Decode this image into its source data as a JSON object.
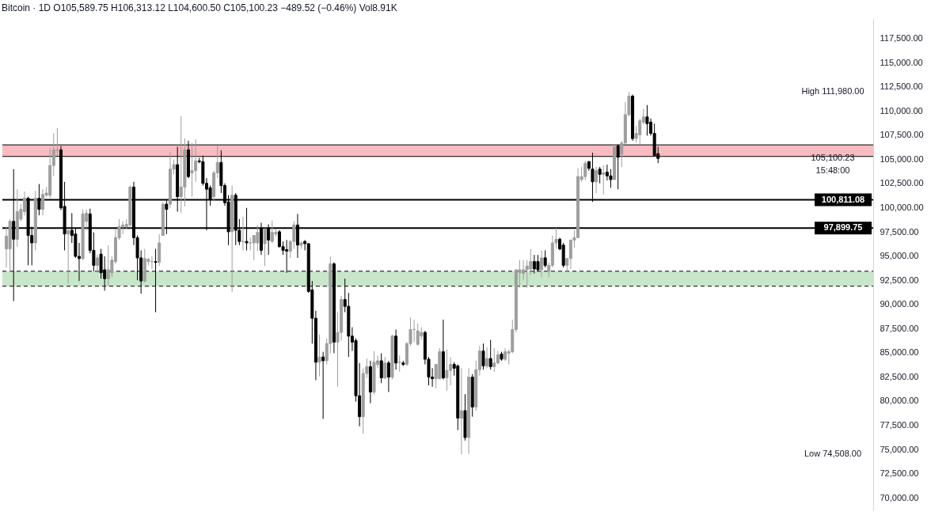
{
  "chart_data": {
    "type": "candlestick",
    "title": "Bitcoin · 1D   O105,589.75 H106,313.12 L104,600.50 C105,100.23 −489.52 (−0.46%) Vol8.91K",
    "categories": [
      null,
      null,
      null,
      null,
      null,
      null,
      null,
      null,
      null,
      null,
      null,
      null,
      null,
      null,
      null,
      null,
      null,
      null,
      null,
      null,
      null,
      null,
      null,
      null,
      null,
      null,
      null,
      null,
      null,
      null,
      null,
      null,
      null,
      null,
      null,
      null,
      null,
      null,
      null,
      null,
      null,
      null,
      null,
      null,
      null,
      null,
      null,
      null,
      null,
      null,
      null,
      null,
      null,
      null,
      null,
      null,
      null,
      null,
      null,
      null,
      null,
      null,
      null,
      null,
      null,
      null,
      null,
      null,
      null,
      null,
      null,
      null,
      null,
      null,
      null,
      null,
      null,
      null,
      null,
      null,
      null,
      null,
      null,
      null,
      null,
      null,
      null,
      null,
      null,
      null,
      null,
      null,
      null,
      null,
      null,
      null,
      null,
      null,
      null,
      null,
      null,
      null,
      null,
      null,
      null,
      null,
      null,
      null,
      null,
      null,
      null,
      null,
      null,
      null,
      null,
      null,
      null,
      null,
      null,
      null,
      null,
      null,
      null,
      null,
      null,
      null,
      null,
      null,
      null,
      null,
      null,
      null,
      null,
      null,
      null,
      null,
      null,
      null,
      null,
      null,
      null,
      null,
      null,
      null,
      null,
      null,
      null,
      null,
      null,
      null,
      null,
      null,
      null,
      null,
      null,
      null,
      null,
      null,
      null,
      null,
      null,
      null,
      null,
      null,
      null,
      null,
      null,
      null,
      null,
      null,
      null,
      null,
      null,
      null,
      null,
      null,
      null,
      null,
      null,
      null,
      null,
      null,
      null,
      null,
      null,
      null,
      null,
      null,
      null,
      null,
      null,
      null,
      null,
      null,
      null,
      null,
      null,
      null,
      null,
      null,
      null,
      null,
      null,
      null,
      null,
      null,
      null,
      null,
      null,
      null,
      null,
      null,
      null,
      null,
      null,
      null,
      null,
      null,
      null,
      null,
      null,
      null,
      null,
      null,
      null,
      null,
      null,
      null,
      null,
      null,
      null,
      null,
      null,
      null,
      null,
      null,
      null,
      null
    ],
    "ohlc": [
      [
        95740,
        98050,
        93810,
        97050
      ],
      [
        95740,
        98820,
        93430,
        98590
      ],
      [
        98590,
        103990,
        90340,
        96740
      ],
      [
        96740,
        101910,
        95970,
        99590
      ],
      [
        98820,
        100370,
        98590,
        99830
      ],
      [
        99590,
        101680,
        99210,
        100980
      ],
      [
        100980,
        101140,
        94040,
        97130
      ],
      [
        97130,
        98050,
        94040,
        96360
      ],
      [
        96360,
        101750,
        95590,
        100980
      ],
      [
        100980,
        102450,
        99210,
        99830
      ],
      [
        99830,
        101910,
        99210,
        101370
      ],
      [
        101290,
        102140,
        101140,
        101520
      ],
      [
        101290,
        106150,
        100980,
        104370
      ],
      [
        104370,
        107690,
        103290,
        105990
      ],
      [
        105920,
        108230,
        105380,
        105990
      ],
      [
        105990,
        106380,
        99750,
        99980
      ],
      [
        100140,
        102680,
        95590,
        97280
      ],
      [
        97280,
        97670,
        92120,
        97670
      ],
      [
        97670,
        99440,
        96360,
        97130
      ],
      [
        97280,
        97900,
        94810,
        94970
      ],
      [
        94970,
        96360,
        92420,
        94740
      ],
      [
        94740,
        99830,
        94580,
        99360
      ],
      [
        98590,
        99830,
        97670,
        99440
      ],
      [
        99360,
        99900,
        95280,
        95590
      ],
      [
        95590,
        97440,
        93430,
        94040
      ],
      [
        94040,
        95120,
        93270,
        94810
      ],
      [
        95200,
        95740,
        92660,
        93270
      ],
      [
        93580,
        94970,
        91420,
        92660
      ],
      [
        92660,
        96130,
        91880,
        93580
      ],
      [
        93270,
        94970,
        92810,
        94580
      ],
      [
        94430,
        97820,
        94200,
        96900
      ],
      [
        96900,
        98820,
        96660,
        98050
      ],
      [
        98050,
        98590,
        97280,
        98210
      ],
      [
        98050,
        98820,
        97820,
        98280
      ],
      [
        98210,
        102290,
        97900,
        102140
      ],
      [
        102140,
        102680,
        96130,
        96900
      ],
      [
        96900,
        97130,
        92500,
        94810
      ],
      [
        94810,
        95590,
        91110,
        92420
      ],
      [
        92420,
        95740,
        92270,
        94740
      ],
      [
        94430,
        94810,
        94040,
        94660
      ],
      [
        94430,
        94970,
        93660,
        94430
      ],
      [
        94430,
        95740,
        89190,
        94350
      ],
      [
        94350,
        97280,
        93970,
        96360
      ],
      [
        97130,
        100600,
        97130,
        100370
      ],
      [
        100370,
        100750,
        97280,
        99830
      ],
      [
        100370,
        105760,
        99980,
        103990
      ],
      [
        103990,
        104990,
        103450,
        104450
      ],
      [
        104450,
        106300,
        99590,
        101140
      ],
      [
        101140,
        109460,
        99440,
        102140
      ],
      [
        102140,
        107150,
        100140,
        105990
      ],
      [
        105990,
        106920,
        103060,
        103220
      ],
      [
        103600,
        106690,
        101140,
        103830
      ],
      [
        103830,
        107070,
        102680,
        104840
      ],
      [
        104840,
        105150,
        104600,
        104760
      ],
      [
        104760,
        105380,
        102290,
        102520
      ],
      [
        102520,
        103060,
        97670,
        101910
      ],
      [
        102060,
        102290,
        100210,
        100910
      ],
      [
        101140,
        103830,
        100750,
        103600
      ],
      [
        103600,
        106380,
        103060,
        104680
      ],
      [
        104680,
        105920,
        101520,
        102290
      ],
      [
        102290,
        102520,
        100210,
        100520
      ],
      [
        100600,
        101290,
        96130,
        97510
      ],
      [
        97510,
        102290,
        91270,
        101290
      ],
      [
        101290,
        101520,
        96130,
        97670
      ],
      [
        97670,
        98820,
        96130,
        96510
      ],
      [
        96510,
        99050,
        95590,
        96510
      ],
      [
        96510,
        99980,
        95590,
        96360
      ],
      [
        96360,
        96900,
        95590,
        96360
      ],
      [
        96360,
        97130,
        94580,
        97130
      ],
      [
        96360,
        98210,
        95510,
        97440
      ],
      [
        97820,
        98440,
        95120,
        95590
      ],
      [
        96280,
        97820,
        93970,
        97820
      ],
      [
        97820,
        98280,
        95120,
        96660
      ],
      [
        96510,
        98670,
        96360,
        97440
      ],
      [
        97280,
        97820,
        97050,
        97440
      ],
      [
        97510,
        97670,
        95890,
        95970
      ],
      [
        95970,
        96510,
        95120,
        95590
      ],
      [
        95660,
        96660,
        93270,
        95510
      ],
      [
        95510,
        96660,
        94810,
        96510
      ],
      [
        96510,
        98590,
        95740,
        98210
      ],
      [
        98210,
        99360,
        94810,
        96130
      ],
      [
        96130,
        96510,
        95740,
        96360
      ],
      [
        96510,
        96660,
        95590,
        96280
      ],
      [
        96280,
        96360,
        91200,
        91340
      ],
      [
        91500,
        92420,
        85950,
        88570
      ],
      [
        88570,
        89340,
        82170,
        84020
      ],
      [
        84020,
        86870,
        82550,
        84560
      ],
      [
        84560,
        85100,
        78160,
        84170
      ],
      [
        84170,
        86490,
        83790,
        85950
      ],
      [
        85950,
        94970,
        84950,
        94200
      ],
      [
        94200,
        94350,
        84950,
        86100
      ],
      [
        86100,
        89190,
        81480,
        87100
      ],
      [
        87100,
        90880,
        86260,
        90500
      ],
      [
        90500,
        92660,
        89190,
        89800
      ],
      [
        89800,
        91190,
        84560,
        86720
      ],
      [
        86720,
        87640,
        85180,
        86100
      ],
      [
        86260,
        86490,
        79940,
        80550
      ],
      [
        80550,
        83940,
        77390,
        78390
      ],
      [
        78390,
        83400,
        76620,
        82860
      ],
      [
        82860,
        84400,
        82400,
        83560
      ],
      [
        83560,
        84170,
        79780,
        80940
      ],
      [
        80940,
        85180,
        80710,
        84020
      ],
      [
        83790,
        84710,
        83400,
        84170
      ],
      [
        84170,
        84950,
        81860,
        82400
      ],
      [
        82400,
        84560,
        82250,
        83940
      ],
      [
        83940,
        84170,
        80940,
        82480
      ],
      [
        82480,
        86870,
        82250,
        86720
      ],
      [
        86720,
        87410,
        83250,
        83940
      ],
      [
        84020,
        84710,
        83020,
        84020
      ],
      [
        83940,
        84170,
        83630,
        83790
      ],
      [
        83790,
        86100,
        83630,
        85950
      ],
      [
        85950,
        88650,
        85720,
        87410
      ],
      [
        87410,
        88420,
        86100,
        87410
      ],
      [
        85870,
        88030,
        85720,
        87260
      ],
      [
        86720,
        87640,
        86330,
        87100
      ],
      [
        87100,
        87260,
        83790,
        84330
      ],
      [
        84330,
        84560,
        81630,
        82480
      ],
      [
        82480,
        83400,
        81480,
        82320
      ],
      [
        82320,
        83790,
        81320,
        83790
      ],
      [
        82320,
        85480,
        82250,
        85100
      ],
      [
        85100,
        88420,
        82250,
        82400
      ],
      [
        82400,
        85330,
        81090,
        83170
      ],
      [
        83170,
        84560,
        81630,
        83790
      ],
      [
        83790,
        84020,
        82630,
        83400
      ],
      [
        83630,
        83790,
        77000,
        78240
      ],
      [
        78240,
        83400,
        74508,
        79010
      ],
      [
        79010,
        80710,
        75920,
        76230
      ],
      [
        76230,
        83400,
        74540,
        82480
      ],
      [
        82480,
        82790,
        78390,
        79390
      ],
      [
        79390,
        84170,
        79010,
        83250
      ],
      [
        83250,
        85720,
        82630,
        85180
      ],
      [
        85180,
        85950,
        83250,
        83630
      ],
      [
        83630,
        85560,
        83400,
        84400
      ],
      [
        84400,
        86330,
        83250,
        83560
      ],
      [
        83560,
        85480,
        83020,
        83940
      ],
      [
        83940,
        85180,
        83790,
        84790
      ],
      [
        84870,
        85100,
        84170,
        84330
      ],
      [
        84330,
        85480,
        84170,
        85100
      ],
      [
        84950,
        85330,
        83790,
        85100
      ],
      [
        85100,
        88420,
        84950,
        87410
      ],
      [
        87410,
        93580,
        87100,
        93580
      ],
      [
        93270,
        94580,
        91730,
        93580
      ],
      [
        93200,
        94580,
        92500,
        93580
      ],
      [
        93580,
        94580,
        91730,
        93970
      ],
      [
        93660,
        95740,
        93040,
        94430
      ],
      [
        94430,
        95120,
        93200,
        93660
      ],
      [
        94430,
        95120,
        93430,
        93580
      ],
      [
        93580,
        95590,
        92810,
        94810
      ],
      [
        94810,
        95590,
        93810,
        94040
      ],
      [
        93430,
        94350,
        92810,
        94040
      ],
      [
        94040,
        97130,
        93810,
        96360
      ],
      [
        96360,
        97900,
        95740,
        96740
      ],
      [
        96740,
        96900,
        95590,
        95740
      ],
      [
        96130,
        96360,
        93810,
        94040
      ],
      [
        94040,
        94810,
        93430,
        94740
      ],
      [
        94740,
        96660,
        93660,
        96660
      ],
      [
        96660,
        97670,
        95890,
        96900
      ],
      [
        96900,
        104070,
        96900,
        103220
      ],
      [
        102910,
        104220,
        102680,
        103220
      ],
      [
        103220,
        104840,
        102830,
        104600
      ],
      [
        104760,
        104840,
        103830,
        104070
      ],
      [
        103990,
        105690,
        100600,
        102680
      ],
      [
        102680,
        104220,
        101520,
        103830
      ],
      [
        103990,
        104220,
        102520,
        103450
      ],
      [
        103450,
        104370,
        101370,
        103600
      ],
      [
        103680,
        104450,
        102830,
        103290
      ],
      [
        103290,
        103990,
        102060,
        102910
      ],
      [
        102910,
        106530,
        102910,
        106300
      ],
      [
        106380,
        106530,
        101910,
        105220
      ],
      [
        105530,
        106920,
        104220,
        106690
      ],
      [
        106690,
        110930,
        106530,
        109620
      ],
      [
        109620,
        111980,
        109460,
        111540
      ],
      [
        111540,
        111700,
        106920,
        107150
      ],
      [
        107150,
        108460,
        106760,
        107690
      ],
      [
        107540,
        109230,
        106530,
        109000
      ],
      [
        108850,
        110230,
        108610,
        109390
      ],
      [
        109390,
        110620,
        107460,
        108690
      ],
      [
        108850,
        109230,
        107460,
        107690
      ],
      [
        107690,
        108690,
        105380,
        105380
      ],
      [
        105589.75,
        106313.12,
        104600.5,
        105100.23
      ],
      null,
      null,
      null,
      null,
      null,
      null,
      null,
      null,
      null,
      null,
      null,
      null,
      null,
      null,
      null,
      null,
      null,
      null,
      null,
      null,
      null,
      null,
      null,
      null,
      null,
      null,
      null,
      null,
      null,
      null,
      null,
      null,
      null,
      null,
      null,
      null,
      null,
      null,
      null,
      null,
      null,
      null,
      null,
      null,
      null,
      null,
      null,
      null,
      null,
      null,
      null,
      null,
      null,
      null,
      null,
      null,
      null,
      null
    ],
    "colors": [
      "#9e9e9e",
      "#9e9e9e",
      "#000000",
      "#9e9e9e",
      "#9e9e9e",
      "#9e9e9e",
      "#000000",
      "#000000",
      "#9e9e9e",
      "#000000",
      "#9e9e9e",
      "#9e9e9e",
      "#9e9e9e",
      "#9e9e9e",
      "#9e9e9e",
      "#000000",
      "#000000",
      "#9e9e9e",
      "#000000",
      "#000000",
      "#000000",
      "#9e9e9e",
      "#9e9e9e",
      "#000000",
      "#000000",
      "#9e9e9e",
      "#000000",
      "#000000",
      "#9e9e9e",
      "#9e9e9e",
      "#9e9e9e",
      "#9e9e9e",
      "#9e9e9e",
      "#9e9e9e",
      "#9e9e9e",
      "#000000",
      "#000000",
      "#000000",
      "#9e9e9e",
      "#9e9e9e",
      "#9e9e9e",
      "#000000",
      "#9e9e9e",
      "#9e9e9e",
      "#000000",
      "#9e9e9e",
      "#9e9e9e",
      "#000000",
      "#9e9e9e",
      "#9e9e9e",
      "#000000",
      "#9e9e9e",
      "#9e9e9e",
      "#000000",
      "#000000",
      "#000000",
      "#000000",
      "#9e9e9e",
      "#9e9e9e",
      "#000000",
      "#000000",
      "#000000",
      "#9e9e9e",
      "#000000",
      "#000000",
      "#9e9e9e",
      "#000000",
      "#9e9e9e",
      "#9e9e9e",
      "#9e9e9e",
      "#000000",
      "#9e9e9e",
      "#000000",
      "#9e9e9e",
      "#9e9e9e",
      "#000000",
      "#000000",
      "#000000",
      "#9e9e9e",
      "#9e9e9e",
      "#000000",
      "#9e9e9e",
      "#000000",
      "#000000",
      "#000000",
      "#000000",
      "#9e9e9e",
      "#000000",
      "#9e9e9e",
      "#9e9e9e",
      "#000000",
      "#9e9e9e",
      "#9e9e9e",
      "#000000",
      "#000000",
      "#000000",
      "#000000",
      "#000000",
      "#9e9e9e",
      "#9e9e9e",
      "#000000",
      "#9e9e9e",
      "#9e9e9e",
      "#000000",
      "#9e9e9e",
      "#000000",
      "#9e9e9e",
      "#000000",
      "#9e9e9e",
      "#000000",
      "#9e9e9e",
      "#9e9e9e",
      "#9e9e9e",
      "#9e9e9e",
      "#9e9e9e",
      "#000000",
      "#000000",
      "#000000",
      "#9e9e9e",
      "#9e9e9e",
      "#000000",
      "#9e9e9e",
      "#9e9e9e",
      "#000000",
      "#000000",
      "#9e9e9e",
      "#000000",
      "#9e9e9e",
      "#000000",
      "#9e9e9e",
      "#9e9e9e",
      "#000000",
      "#9e9e9e",
      "#000000",
      "#9e9e9e",
      "#9e9e9e",
      "#000000",
      "#9e9e9e",
      "#9e9e9e",
      "#9e9e9e",
      "#9e9e9e",
      "#9e9e9e",
      "#9e9e9e",
      "#9e9e9e",
      "#9e9e9e",
      "#000000",
      "#000000",
      "#9e9e9e",
      "#000000",
      "#9e9e9e",
      "#9e9e9e",
      "#9e9e9e",
      "#000000",
      "#000000",
      "#9e9e9e",
      "#9e9e9e",
      "#9e9e9e",
      "#9e9e9e",
      "#9e9e9e",
      "#9e9e9e",
      "#000000",
      "#000000",
      "#9e9e9e",
      "#000000",
      "#9e9e9e",
      "#000000",
      "#000000",
      "#9e9e9e",
      "#000000",
      "#9e9e9e",
      "#9e9e9e",
      "#9e9e9e",
      "#000000",
      "#9e9e9e",
      "#9e9e9e",
      "#9e9e9e",
      "#000000",
      "#000000",
      "#000000",
      "#000000",
      null,
      null,
      null,
      null,
      null,
      null,
      null,
      null,
      null,
      null,
      null,
      null,
      null,
      null,
      null,
      null,
      null,
      null,
      null,
      null,
      null,
      null,
      null,
      null,
      null,
      null,
      null,
      null,
      null,
      null,
      null,
      null,
      null,
      null,
      null,
      null,
      null,
      null,
      null,
      null,
      null,
      null,
      null,
      null,
      null,
      null,
      null,
      null,
      null,
      null,
      null,
      null,
      null,
      null,
      null,
      null,
      null,
      null
    ],
    "ylim": [
      68700,
      119600
    ],
    "yticks": [
      {
        "value": 70000,
        "label": "70,000.00"
      },
      {
        "value": 72500,
        "label": "72,500.00"
      },
      {
        "value": 75000,
        "label": "75,000.00"
      },
      {
        "value": 77500,
        "label": "77,500.00"
      },
      {
        "value": 80000,
        "label": "80,000.00"
      },
      {
        "value": 82500,
        "label": "82,500.00"
      },
      {
        "value": 85000,
        "label": "85,000.00"
      },
      {
        "value": 87500,
        "label": "87,500.00"
      },
      {
        "value": 90000,
        "label": "90,000.00"
      },
      {
        "value": 92500,
        "label": "92,500.00"
      },
      {
        "value": 95000,
        "label": "95,000.00"
      },
      {
        "value": 97500,
        "label": "97,500.00"
      },
      {
        "value": 100000,
        "label": "100,000.00"
      },
      {
        "value": 102500,
        "label": "102,500.00"
      },
      {
        "value": 105000,
        "label": "105,000.00"
      },
      {
        "value": 107500,
        "label": "107,500.00"
      },
      {
        "value": 110000,
        "label": "110,000.00"
      },
      {
        "value": 112500,
        "label": "112,500.00"
      },
      {
        "value": 115000,
        "label": "115,000.00"
      },
      {
        "value": 117500,
        "label": "117,500.00"
      }
    ],
    "tick_labels": "y",
    "bands": [
      {
        "axis": "y",
        "from": 105300,
        "to": 106500,
        "color": "#f8bbc0"
      },
      {
        "axis": "y",
        "from": 91880,
        "to": 93430,
        "color": "#c8e6c9"
      }
    ],
    "ref_lines": [
      {
        "axis": "y",
        "value": 100811.08,
        "label": "100,811.08"
      },
      {
        "axis": "y",
        "value": 97899.75,
        "label": "97,899.75"
      },
      {
        "axis": "y",
        "value": 105300,
        "label": null,
        "line_style": "solid"
      },
      {
        "axis": "y",
        "value": 106500,
        "label": null,
        "line_style": "solid"
      },
      {
        "axis": "y",
        "value": 91880,
        "label": null,
        "line_style": "dashed"
      },
      {
        "axis": "y",
        "value": 93430,
        "label": null,
        "line_style": "dashed"
      }
    ],
    "annotations": [
      "High 111,980.00",
      {
        "text": "105,100.23",
        "y": 105100.23
      },
      "15:48:00",
      "Low 74,508.00"
    ]
  }
}
